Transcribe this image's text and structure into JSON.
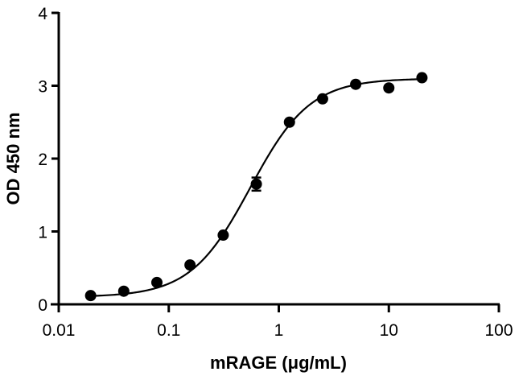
{
  "chart_data": {
    "type": "scatter",
    "title": "",
    "xlabel": "mRAGE (μg/mL)",
    "ylabel": "OD 450 nm",
    "xscale": "log",
    "xlim": [
      0.01,
      100
    ],
    "ylim": [
      0,
      4
    ],
    "x_ticks": [
      0.01,
      0.1,
      1,
      10,
      100
    ],
    "x_tick_labels": [
      "0.01",
      "0.1",
      "1",
      "10",
      "100"
    ],
    "y_ticks": [
      0,
      1,
      2,
      3,
      4
    ],
    "y_tick_labels": [
      "0",
      "1",
      "2",
      "3",
      "4"
    ],
    "grid": false,
    "legend": null,
    "series": [
      {
        "name": "mRAGE",
        "marker": "filled-circle",
        "color": "#000000",
        "x": [
          0.0195,
          0.039,
          0.078,
          0.156,
          0.3125,
          0.625,
          1.25,
          2.5,
          5,
          10,
          20
        ],
        "y": [
          0.12,
          0.18,
          0.3,
          0.54,
          0.95,
          1.65,
          2.5,
          2.82,
          3.02,
          2.97,
          3.11
        ],
        "error": [
          0,
          0,
          0,
          0,
          0,
          0.09,
          0,
          0,
          0,
          0,
          0
        ]
      }
    ],
    "fit": {
      "type": "4PL sigmoidal curve",
      "bottom": 0.1,
      "top": 3.1,
      "ec50": 0.55,
      "hill": 1.6,
      "x_range": [
        0.0195,
        20
      ]
    }
  }
}
